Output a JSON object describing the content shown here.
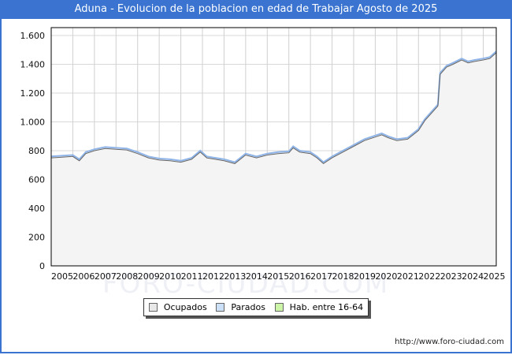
{
  "title": "Aduna - Evolucion de la poblacion en edad de Trabajar Agosto de 2025",
  "footer": "http://www.foro-ciudad.com",
  "watermark": "FORO-CIUDAD.COM",
  "legend": [
    {
      "label": "Ocupados",
      "color": "#e8e8e8"
    },
    {
      "label": "Parados",
      "color": "#cce0f8"
    },
    {
      "label": "Hab. entre 16-64",
      "color": "#ccf5a8"
    }
  ],
  "chart_data": {
    "type": "area",
    "title": "Aduna - Evolucion de la poblacion en edad de Trabajar Agosto de 2025",
    "xlabel": "",
    "ylabel": "",
    "ylim": [
      0,
      1650
    ],
    "yticks": [
      0,
      200,
      400,
      600,
      800,
      1000,
      1200,
      1400,
      1600
    ],
    "ytick_labels": [
      "0",
      "200",
      "400",
      "600",
      "800",
      "1.000",
      "1.200",
      "1.400",
      "1.600"
    ],
    "xticks": [
      "2005",
      "2006",
      "2007",
      "2008",
      "2009",
      "2010",
      "2011",
      "2012",
      "2013",
      "2014",
      "2015",
      "2016",
      "2017",
      "2018",
      "2019",
      "2020",
      "2021",
      "2022",
      "2023",
      "2024",
      "2025"
    ],
    "grid": true,
    "legend_position": "bottom",
    "x": [
      2005.0,
      2005.5,
      2006.0,
      2006.3,
      2006.6,
      2007.0,
      2007.5,
      2008.0,
      2008.5,
      2009.0,
      2009.5,
      2010.0,
      2010.5,
      2011.0,
      2011.5,
      2011.9,
      2012.2,
      2012.6,
      2013.0,
      2013.5,
      2014.0,
      2014.5,
      2015.0,
      2015.5,
      2016.0,
      2016.2,
      2016.5,
      2017.0,
      2017.3,
      2017.6,
      2018.0,
      2018.5,
      2019.0,
      2019.5,
      2020.0,
      2020.3,
      2020.6,
      2021.0,
      2021.5,
      2022.0,
      2022.3,
      2022.6,
      2022.9,
      2023.0,
      2023.3,
      2023.6,
      2024.0,
      2024.3,
      2024.6,
      2025.0,
      2025.3,
      2025.6
    ],
    "series": [
      {
        "name": "Hab. entre 16-64",
        "values": [
          760,
          765,
          770,
          740,
          790,
          810,
          825,
          820,
          815,
          790,
          760,
          745,
          740,
          730,
          750,
          800,
          760,
          750,
          740,
          720,
          780,
          760,
          780,
          790,
          795,
          830,
          800,
          790,
          760,
          720,
          760,
          800,
          840,
          880,
          905,
          920,
          900,
          880,
          890,
          950,
          1020,
          1070,
          1120,
          1340,
          1390,
          1410,
          1440,
          1420,
          1430,
          1440,
          1450,
          1490
        ]
      },
      {
        "name": "Parados",
        "values": [
          750,
          755,
          760,
          730,
          780,
          800,
          815,
          810,
          805,
          780,
          750,
          735,
          730,
          720,
          740,
          790,
          750,
          740,
          730,
          710,
          770,
          750,
          770,
          780,
          785,
          820,
          790,
          780,
          750,
          710,
          750,
          790,
          830,
          870,
          895,
          910,
          890,
          870,
          880,
          940,
          1010,
          1060,
          1110,
          1330,
          1380,
          1400,
          1430,
          1410,
          1420,
          1430,
          1440,
          1480
        ]
      },
      {
        "name": "Ocupados",
        "values": [
          750,
          755,
          760,
          730,
          780,
          800,
          815,
          810,
          805,
          780,
          750,
          735,
          730,
          720,
          740,
          790,
          750,
          740,
          730,
          710,
          770,
          750,
          770,
          780,
          785,
          820,
          790,
          780,
          750,
          710,
          750,
          790,
          830,
          870,
          895,
          910,
          890,
          870,
          880,
          940,
          1010,
          1060,
          1110,
          1330,
          1380,
          1400,
          1430,
          1410,
          1420,
          1430,
          1440,
          1480
        ]
      }
    ]
  }
}
